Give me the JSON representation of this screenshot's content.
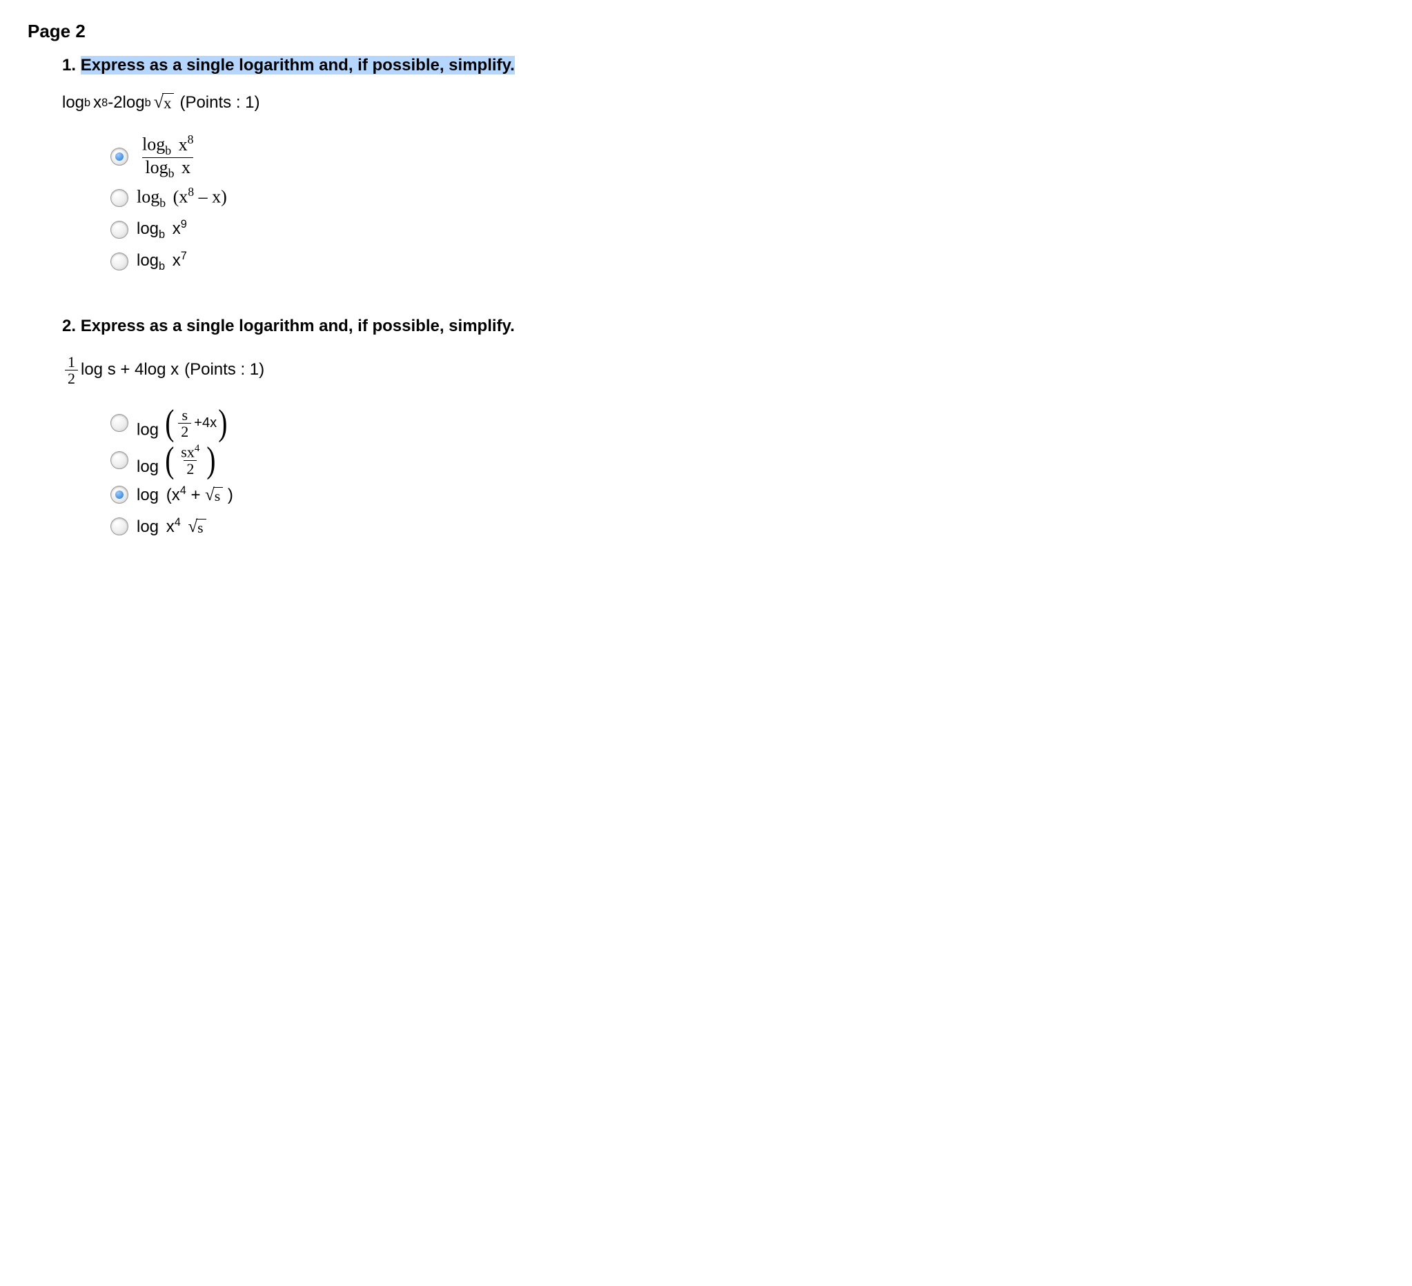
{
  "page_title": "Page 2",
  "colors": {
    "highlight_bg": "#b5d7ff",
    "radio_selected": "#4f97e6"
  },
  "questions": [
    {
      "number": "1.",
      "prompt": "Express as a single logarithm and, if possible, simplify.",
      "highlighted": true,
      "points_label": "(Points : 1)",
      "expression": {
        "term1": {
          "fn": "log",
          "base": "b",
          "arg": "x",
          "arg_exp": "8"
        },
        "minus": " - ",
        "coef2": "2",
        "term2": {
          "fn": "log",
          "base": "b",
          "arg_sqrt": "x"
        }
      },
      "options": [
        {
          "selected": true,
          "type": "fraction_of_logs",
          "num": {
            "fn": "log",
            "base": "b",
            "arg": "x",
            "arg_exp": "8",
            "serif": true
          },
          "den": {
            "fn": "log",
            "base": "b",
            "arg": "x",
            "serif": true
          }
        },
        {
          "selected": false,
          "type": "log_of_diff",
          "fn": "log",
          "base": "b",
          "open": "(",
          "arg1": "x",
          "arg1_exp": "8",
          "minus": " – ",
          "arg2": "x",
          "close": ")",
          "serif": true
        },
        {
          "selected": false,
          "type": "log_power",
          "fn": "log",
          "base": "b",
          "arg": "x",
          "arg_exp": "9",
          "serif": false
        },
        {
          "selected": false,
          "type": "log_power",
          "fn": "log",
          "base": "b",
          "arg": "x",
          "arg_exp": "7",
          "serif": false
        }
      ]
    },
    {
      "number": "2.",
      "prompt": "Express as a single logarithm and, if possible, simplify.",
      "highlighted": false,
      "points_label": "(Points : 1)",
      "expression": {
        "frac": {
          "num": "1",
          "den": "2"
        },
        "t1": "log s + 4log x"
      },
      "options": [
        {
          "selected": false,
          "type": "log_paren_sum",
          "fn": "log",
          "inner_frac": {
            "num": "s",
            "den": "2"
          },
          "plus": " + ",
          "t2": "4x"
        },
        {
          "selected": false,
          "type": "log_paren_frac",
          "fn": "log",
          "frac": {
            "num_pre": "sx",
            "num_exp": "4",
            "den": "2"
          }
        },
        {
          "selected": true,
          "type": "log_sum_sqrt",
          "fn": "log",
          "open": "(",
          "argA": "x",
          "argA_exp": "4",
          "plus": " + ",
          "sqrt_arg": "s",
          "close": ")",
          "serif": false
        },
        {
          "selected": false,
          "type": "log_prod_sqrt",
          "fn": "log",
          "argA": "x",
          "argA_exp": "4",
          "sqrt_arg": "s",
          "serif": false
        }
      ]
    }
  ]
}
